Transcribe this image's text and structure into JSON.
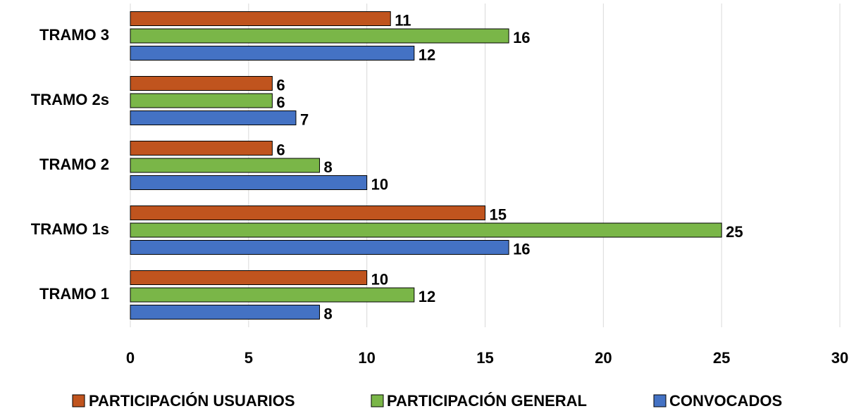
{
  "chart_data": {
    "type": "bar",
    "orientation": "horizontal",
    "categories": [
      "TRAMO 1",
      "TRAMO 1s",
      "TRAMO 2",
      "TRAMO 2s",
      "TRAMO 3"
    ],
    "series": [
      {
        "name": "PARTICIPACIÓN USUARIOS",
        "color": "#c0541e",
        "values": [
          10,
          15,
          6,
          6,
          11
        ]
      },
      {
        "name": "PARTICIPACIÓN GENERAL",
        "color": "#7ab648",
        "values": [
          12,
          25,
          8,
          6,
          16
        ]
      },
      {
        "name": "CONVOCADOS",
        "color": "#4472c4",
        "values": [
          8,
          16,
          10,
          7,
          12
        ]
      }
    ],
    "xlim": [
      0,
      30
    ],
    "xticks": [
      0,
      5,
      10,
      15,
      20,
      25,
      30
    ],
    "grid": true,
    "legend": "bottom"
  }
}
